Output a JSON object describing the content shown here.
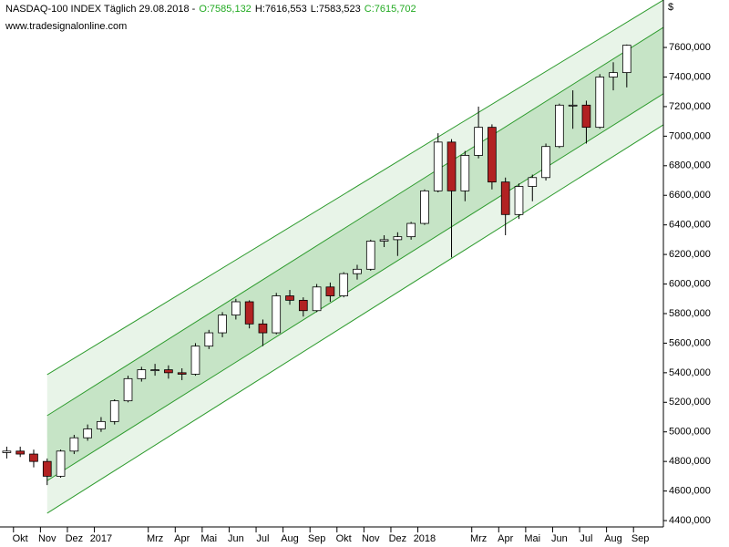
{
  "chart_data": {
    "type": "candlestick",
    "title": "NASDAQ-100 INDEX Täglich",
    "date": "29.08.2018 -",
    "quote": [
      "O:7585,132",
      "H:7616,553",
      "L:7583,523",
      "C:7615,702"
    ],
    "quote_colors": [
      "#22aa22",
      "#000000",
      "#000000",
      "#22aa22"
    ],
    "subtitle": "www.tradesignalonline.com",
    "currency": "$",
    "categories": [
      null,
      "Okt",
      null,
      "Nov",
      null,
      "Dez",
      null,
      "2017",
      null,
      null,
      null,
      "Mrz",
      null,
      "Apr",
      null,
      "Mai",
      null,
      "Jun",
      null,
      "Jul",
      null,
      "Aug",
      null,
      "Sep",
      null,
      "Okt",
      null,
      "Nov",
      null,
      "Dez",
      null,
      "2018",
      null,
      null,
      null,
      "Mrz",
      null,
      "Apr",
      null,
      "Mai",
      null,
      "Jun",
      null,
      "Jul",
      null,
      "Aug",
      null,
      "Sep"
    ],
    "open": [
      4860,
      4870,
      4850,
      4800,
      4700,
      4870,
      4960,
      5020,
      5070,
      5210,
      5360,
      5420,
      5420,
      5400,
      5390,
      5580,
      5670,
      5790,
      5880,
      5730,
      5670,
      5920,
      5890,
      5820,
      5980,
      5920,
      6070,
      6100,
      6290,
      6300,
      6320,
      6410,
      6630,
      6960,
      6630,
      6870,
      7060,
      6690,
      6470,
      6660,
      6720,
      6930,
      7210,
      7210,
      7060,
      7400,
      7430,
      null
    ],
    "high": [
      4900,
      4900,
      4880,
      4820,
      4880,
      4980,
      5050,
      5100,
      5220,
      5380,
      5440,
      5460,
      5450,
      5430,
      5600,
      5690,
      5810,
      5900,
      5890,
      5760,
      5940,
      5960,
      5910,
      6000,
      6010,
      6080,
      6130,
      6300,
      6330,
      6350,
      6420,
      6640,
      7020,
      6980,
      6900,
      7200,
      7080,
      6720,
      6680,
      6740,
      6950,
      7220,
      7310,
      7240,
      7420,
      7500,
      7620,
      null
    ],
    "low": [
      4820,
      4830,
      4760,
      4640,
      4690,
      4850,
      4940,
      5000,
      5050,
      5200,
      5340,
      5380,
      5360,
      5350,
      5380,
      5560,
      5640,
      5760,
      5700,
      5580,
      5660,
      5860,
      5780,
      5810,
      5880,
      5910,
      6030,
      6090,
      6250,
      6190,
      6300,
      6400,
      6620,
      6180,
      6560,
      6850,
      6640,
      6330,
      6440,
      6560,
      6700,
      6920,
      7050,
      6950,
      7050,
      7310,
      7330,
      null
    ],
    "close": [
      4870,
      4850,
      4800,
      4700,
      4870,
      4960,
      5020,
      5070,
      5210,
      5360,
      5420,
      5420,
      5400,
      5390,
      5580,
      5670,
      5790,
      5880,
      5730,
      5670,
      5920,
      5890,
      5820,
      5980,
      5920,
      6070,
      6100,
      6290,
      6300,
      6320,
      6410,
      6630,
      6960,
      6630,
      6870,
      7060,
      6690,
      6470,
      6660,
      6720,
      6930,
      7210,
      7210,
      7060,
      7400,
      7430,
      7615,
      null
    ],
    "up_color": "#ffffff",
    "down_color": "#b22222",
    "channel": {
      "x": [
        3,
        48.7
      ],
      "lines": [
        [
          5387,
          7920
        ],
        [
          5110,
          7735
        ],
        [
          4670,
          7286
        ],
        [
          4450,
          7076
        ]
      ],
      "line_color": "#2e9b2e",
      "outer_fill": "#e8f4e8",
      "inner_fill": "#c6e4c6"
    },
    "ylim": [
      4357,
      7921
    ],
    "yticks": [
      {
        "value": 4400,
        "label": "4400,000"
      },
      {
        "value": 4600,
        "label": "4600,000"
      },
      {
        "value": 4800,
        "label": "4800,000"
      },
      {
        "value": 5000,
        "label": "5000,000"
      },
      {
        "value": 5200,
        "label": "5200,000"
      },
      {
        "value": 5400,
        "label": "5400,000"
      },
      {
        "value": 5600,
        "label": "5600,000"
      },
      {
        "value": 5800,
        "label": "5800,000"
      },
      {
        "value": 6000,
        "label": "6000,000"
      },
      {
        "value": 6200,
        "label": "6200,000"
      },
      {
        "value": 6400,
        "label": "6400,000"
      },
      {
        "value": 6600,
        "label": "6600,000"
      },
      {
        "value": 6800,
        "label": "6800,000"
      },
      {
        "value": 7000,
        "label": "7000,000"
      },
      {
        "value": 7200,
        "label": "7200,000"
      },
      {
        "value": 7400,
        "label": "7400,000"
      },
      {
        "value": 7600,
        "label": "7600,000"
      }
    ]
  }
}
